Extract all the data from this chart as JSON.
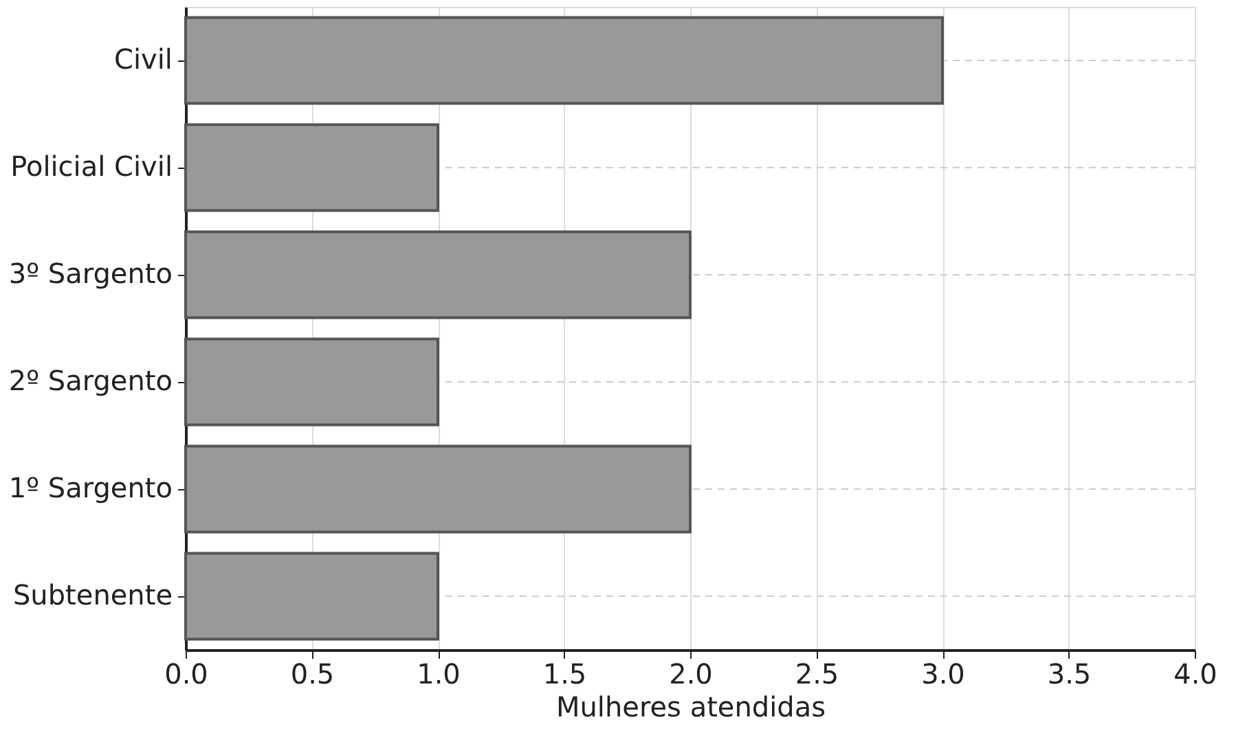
{
  "chart_data": {
    "type": "bar",
    "orientation": "horizontal",
    "categories": [
      "Civil",
      "Policial Civil",
      "3º Sargento",
      "2º Sargento",
      "1º Sargento",
      "Subtenente"
    ],
    "values": [
      3,
      1,
      2,
      1,
      2,
      1
    ],
    "color": "#999999",
    "xlabel": "Mulheres atendidas",
    "xlim": [
      0,
      4
    ],
    "xticks": [
      {
        "value": 0,
        "label": "0.0"
      },
      {
        "value": 0.5,
        "label": "0.5"
      },
      {
        "value": 1,
        "label": "1.0"
      },
      {
        "value": 1.5,
        "label": "1.5"
      },
      {
        "value": 2,
        "label": "2.0"
      },
      {
        "value": 2.5,
        "label": "2.5"
      },
      {
        "value": 3,
        "label": "3.0"
      },
      {
        "value": 3.5,
        "label": "3.5"
      },
      {
        "value": 4,
        "label": "4.0"
      }
    ],
    "grid": true
  }
}
